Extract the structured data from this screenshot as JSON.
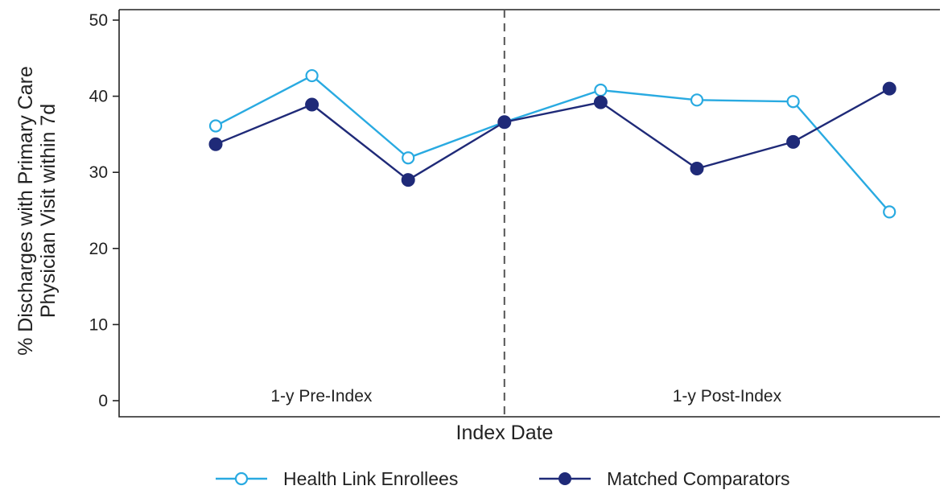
{
  "chart_data": {
    "type": "line",
    "xlabel": "Index Date",
    "ylabel": "% Discharges with Primary Care Physician Visit within 7d",
    "ylabel_lines": [
      "% Discharges with Primary Care",
      "Physician Visit within 7d"
    ],
    "ylim": [
      0,
      50
    ],
    "yticks": [
      0,
      10,
      20,
      30,
      40,
      50
    ],
    "x": [
      1,
      2,
      3,
      4,
      5,
      6,
      7,
      8
    ],
    "index_x": 4,
    "regions": [
      {
        "label": "1-y Pre-Index"
      },
      {
        "label": "1-y Post-Index"
      }
    ],
    "series": [
      {
        "name": "Health Link Enrollees",
        "color": "#29aae1",
        "marker": "open-circle",
        "values": [
          36.1,
          42.7,
          31.9,
          36.6,
          40.8,
          39.5,
          39.3,
          24.8
        ]
      },
      {
        "name": "Matched Comparators",
        "color": "#1f2a78",
        "marker": "filled-circle",
        "values": [
          33.7,
          38.9,
          29.0,
          36.6,
          39.2,
          30.5,
          34.0,
          41.0
        ]
      }
    ],
    "legend_position": "bottom-center",
    "grid": false
  }
}
